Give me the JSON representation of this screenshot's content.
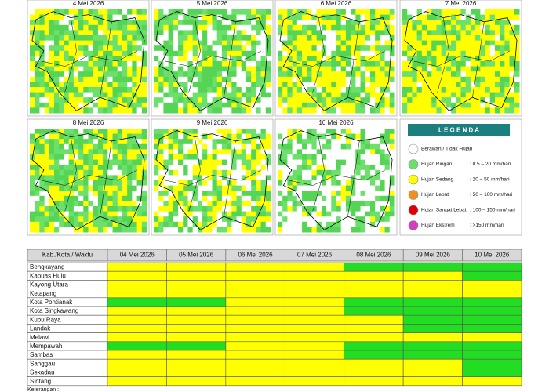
{
  "maps": [
    {
      "date": "4 Mei 2026",
      "yellow": 0.35,
      "white": 0.08
    },
    {
      "date": "5 Mei 2026",
      "yellow": 0.15,
      "white": 0.25
    },
    {
      "date": "6 Mei 2026",
      "yellow": 0.4,
      "white": 0.15
    },
    {
      "date": "7 Mei 2026",
      "yellow": 0.55,
      "white": 0.05
    },
    {
      "date": "8 Mei 2026",
      "yellow": 0.3,
      "white": 0.05
    },
    {
      "date": "9 Mei 2026",
      "yellow": 0.3,
      "white": 0.3
    },
    {
      "date": "10 Mei 2026",
      "yellow": 0.05,
      "white": 0.5
    }
  ],
  "legend": {
    "title": "L E G E N D A",
    "header_color": "#1b7f7f",
    "items": [
      {
        "label": "Berawan / Tidak Hujan",
        "color": "#ffffff"
      },
      {
        "label": "Hujan Ringan",
        "range": ": 0.5 – 20 mm/hari",
        "color": "#6be06b"
      },
      {
        "label": "Hujan Sedang",
        "range": ": 20 – 50 mm/hari",
        "color": "#ffff00"
      },
      {
        "label": "Hujan Lebat",
        "range": ": 50 – 100 mm/hari",
        "color": "#f0901e"
      },
      {
        "label": "Hujan Sangat Lebat",
        "range": ": 100 – 150 mm/hari",
        "color": "#e00000"
      },
      {
        "label": "Hujan Ekstrem",
        "range": ": >150 mm/hari",
        "color": "#d040c0"
      }
    ]
  },
  "table": {
    "header": [
      "Kab./Kota / Waktu",
      "04 Mei 2026",
      "05 Mei 2026",
      "06 Mei 2026",
      "07 Mei 2026",
      "08 Mei 2026",
      "09 Mei 2026",
      "10 Mei 2026"
    ],
    "rows": [
      {
        "name": "Bengkayang",
        "colors": [
          "#ffff00",
          "#ffff00",
          "#ffff00",
          "#ffff00",
          "#22dd22",
          "#22dd22",
          "#22dd22"
        ]
      },
      {
        "name": "Kapuas Hulu",
        "colors": [
          "#ffff00",
          "#ffff00",
          "#ffff00",
          "#ffff00",
          "#ffff00",
          "#ffff00",
          "#22dd22"
        ]
      },
      {
        "name": "Kayong Utara",
        "colors": [
          "#ffff00",
          "#ffff00",
          "#ffff00",
          "#ffff00",
          "#ffff00",
          "#ffff00",
          "#ffff00"
        ]
      },
      {
        "name": "Ketapang",
        "colors": [
          "#ffff00",
          "#ffff00",
          "#ffff00",
          "#ffff00",
          "#ffff00",
          "#ffff00",
          "#ffff00"
        ]
      },
      {
        "name": "Kota Pontianak",
        "colors": [
          "#22dd22",
          "#22dd22",
          "#ffff00",
          "#ffff00",
          "#22dd22",
          "#22dd22",
          "#22dd22"
        ]
      },
      {
        "name": "Kota Singkawang",
        "colors": [
          "#ffff00",
          "#ffff00",
          "#ffff00",
          "#ffff00",
          "#22dd22",
          "#22dd22",
          "#22dd22"
        ]
      },
      {
        "name": "Kubu Raya",
        "colors": [
          "#ffff00",
          "#ffff00",
          "#ffff00",
          "#ffff00",
          "#ffff00",
          "#22dd22",
          "#22dd22"
        ]
      },
      {
        "name": "Landak",
        "colors": [
          "#ffff00",
          "#ffff00",
          "#ffff00",
          "#ffff00",
          "#ffff00",
          "#22dd22",
          "#22dd22"
        ]
      },
      {
        "name": "Melawi",
        "colors": [
          "#ffff00",
          "#ffff00",
          "#ffff00",
          "#ffff00",
          "#ffff00",
          "#ffff00",
          "#ffff00"
        ]
      },
      {
        "name": "Mempawah",
        "colors": [
          "#22dd22",
          "#22dd22",
          "#ffff00",
          "#ffff00",
          "#22dd22",
          "#22dd22",
          "#22dd22"
        ]
      },
      {
        "name": "Sambas",
        "colors": [
          "#ffff00",
          "#ffff00",
          "#ffff00",
          "#ffff00",
          "#22dd22",
          "#22dd22",
          "#22dd22"
        ]
      },
      {
        "name": "Sanggau",
        "colors": [
          "#ffff00",
          "#ffff00",
          "#ffff00",
          "#ffff00",
          "#ffff00",
          "#ffff00",
          "#22dd22"
        ]
      },
      {
        "name": "Sekadau",
        "colors": [
          "#ffff00",
          "#ffff00",
          "#ffff00",
          "#ffff00",
          "#ffff00",
          "#ffff00",
          "#22dd22"
        ]
      },
      {
        "name": "Sintang",
        "colors": [
          "#ffff00",
          "#ffff00",
          "#ffff00",
          "#ffff00",
          "#ffff00",
          "#ffff00",
          "#ffff00"
        ]
      }
    ]
  },
  "footer": "Keterangan :"
}
